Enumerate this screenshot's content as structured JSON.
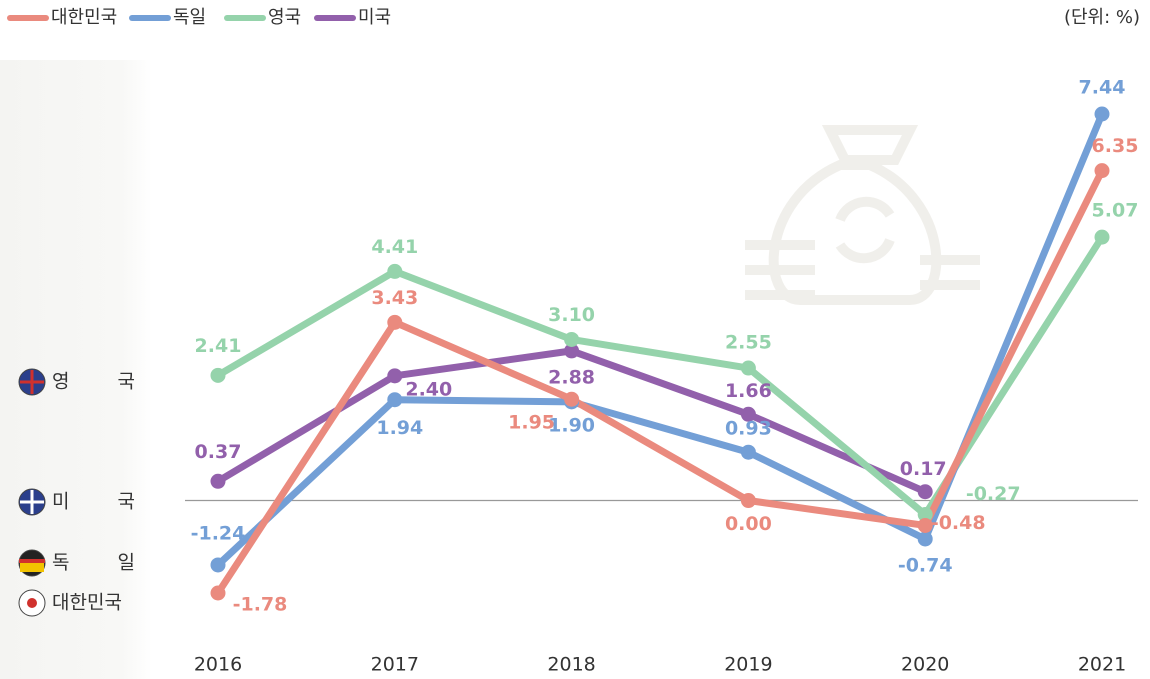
{
  "chart_data": {
    "type": "line",
    "unit_note": "(단위: %)",
    "categories": [
      "2016",
      "2017",
      "2018",
      "2019",
      "2020",
      "2021"
    ],
    "series": [
      {
        "name": "대한민국",
        "color": "#ea8a7e",
        "values": [
          -1.78,
          3.43,
          1.95,
          0.0,
          -0.48,
          6.35
        ],
        "value_labels": [
          "-1.78",
          "3.43",
          "1.95",
          "0.00",
          "-0.48",
          "6.35"
        ]
      },
      {
        "name": "독일",
        "color": "#739fd6",
        "values": [
          -1.24,
          1.94,
          1.9,
          0.93,
          -0.74,
          7.44
        ],
        "value_labels": [
          "-1.24",
          "1.94",
          "1.90",
          "0.93",
          "-0.74",
          "7.44"
        ]
      },
      {
        "name": "영국",
        "color": "#95d3ab",
        "values": [
          2.41,
          4.41,
          3.1,
          2.55,
          -0.27,
          5.07
        ],
        "value_labels": [
          "2.41",
          "4.41",
          "3.10",
          "2.55",
          "-0.27",
          "5.07"
        ]
      },
      {
        "name": "미국",
        "color": "#9260ab",
        "values": [
          0.37,
          2.4,
          2.88,
          1.66,
          0.17,
          null
        ],
        "value_labels": [
          "0.37",
          "2.40",
          "2.88",
          "1.66",
          "0.17",
          null
        ]
      }
    ]
  }
}
